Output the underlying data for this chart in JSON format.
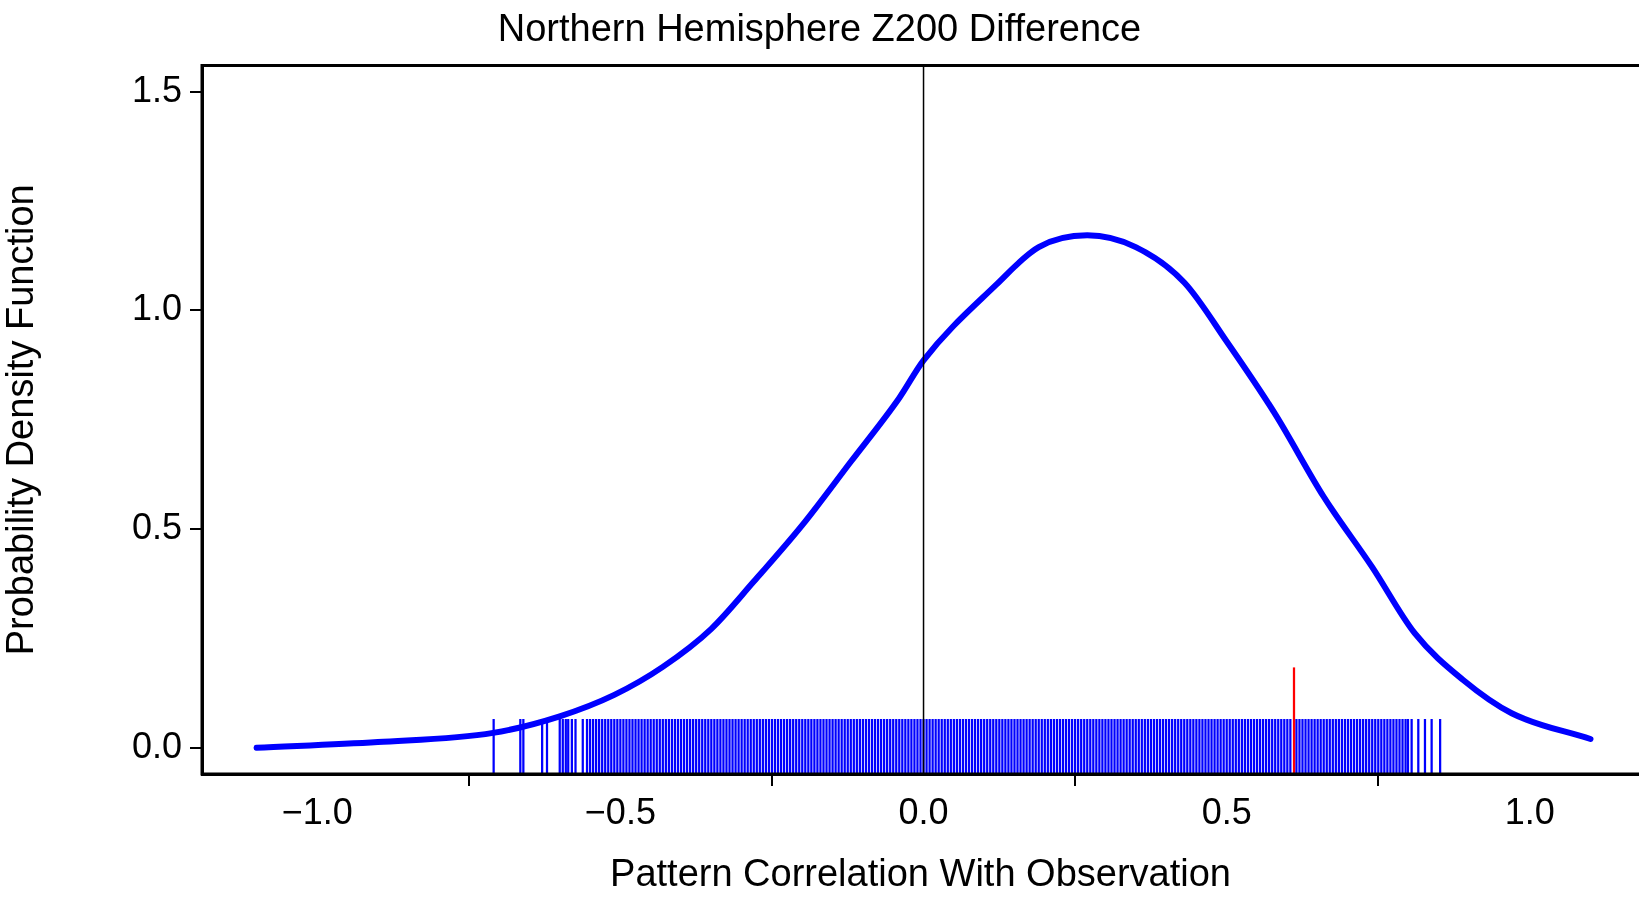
{
  "chart_data": {
    "type": "line",
    "title": "Northern Hemisphere Z200 Difference",
    "xlabel": "Pattern Correlation With Observation",
    "ylabel": "Probability Density Function",
    "xlim": [
      -1.19,
      1.18
    ],
    "ylim": [
      -0.06,
      1.56
    ],
    "xticks": [
      {
        "value": -1,
        "label": "−1.0"
      },
      {
        "value": -0.5,
        "label": "−0.5"
      },
      {
        "value": 0,
        "label": "0.0"
      },
      {
        "value": 0.5,
        "label": "0.5"
      },
      {
        "value": 1,
        "label": "1.0"
      }
    ],
    "yticks": [
      {
        "value": 0,
        "label": "0.0"
      },
      {
        "value": 0.5,
        "label": "0.5"
      },
      {
        "value": 1,
        "label": "1.0"
      },
      {
        "value": 1.5,
        "label": "1.5"
      }
    ],
    "grid": false,
    "legend": false,
    "marker": "none",
    "line_style": "solid",
    "ref_lines": [
      {
        "axis": "x",
        "value": 0,
        "color": "#000000"
      }
    ],
    "series": [
      {
        "color": "#0000ff",
        "x": [
          -1.1,
          -0.9,
          -0.71,
          -0.6,
          -0.51,
          -0.43,
          -0.35,
          -0.28,
          -0.2,
          -0.12,
          -0.04,
          0,
          0.12,
          0.19,
          0.27,
          0.35,
          0.43,
          0.5,
          0.58,
          0.66,
          0.74,
          0.81,
          0.89,
          0.97,
          1.1
        ],
        "values": [
          0,
          0.013,
          0.034,
          0.072,
          0.121,
          0.185,
          0.272,
          0.38,
          0.509,
          0.654,
          0.8,
          0.886,
          1.059,
          1.145,
          1.172,
          1.145,
          1.064,
          0.929,
          0.763,
          0.574,
          0.413,
          0.262,
          0.155,
          0.079,
          0.02
        ]
      },
      {
        "type": "bar",
        "color": "#0000ff",
        "x": [
          -0.709,
          -0.665,
          -0.66,
          -0.629,
          -0.621,
          -0.6,
          -0.595,
          -0.59,
          -0.586,
          -0.58,
          -0.574,
          -0.562,
          -0.555,
          -0.55,
          -0.545,
          -0.54,
          -0.535,
          -0.53,
          -0.525,
          -0.52,
          -0.515,
          -0.51,
          -0.505,
          -0.5,
          -0.495,
          -0.49,
          -0.485,
          -0.48,
          -0.475,
          -0.47,
          -0.465,
          -0.46,
          -0.455,
          -0.45,
          -0.445,
          -0.44,
          -0.435,
          -0.43,
          -0.425,
          -0.42,
          -0.415,
          -0.41,
          -0.405,
          -0.4,
          -0.395,
          -0.39,
          -0.385,
          -0.38,
          -0.375,
          -0.37,
          -0.365,
          -0.36,
          -0.355,
          -0.35,
          -0.345,
          -0.34,
          -0.335,
          -0.33,
          -0.325,
          -0.32,
          -0.315,
          -0.31,
          -0.305,
          -0.3,
          -0.295,
          -0.29,
          -0.285,
          -0.28,
          -0.275,
          -0.27,
          -0.265,
          -0.26,
          -0.255,
          -0.25,
          -0.245,
          -0.24,
          -0.235,
          -0.23,
          -0.225,
          -0.22,
          -0.215,
          -0.21,
          -0.205,
          -0.2,
          -0.195,
          -0.19,
          -0.185,
          -0.18,
          -0.175,
          -0.17,
          -0.165,
          -0.16,
          -0.155,
          -0.15,
          -0.145,
          -0.14,
          -0.135,
          -0.13,
          -0.125,
          -0.12,
          -0.115,
          -0.11,
          -0.105,
          -0.1,
          -0.095,
          -0.09,
          -0.085,
          -0.08,
          -0.075,
          -0.07,
          -0.065,
          -0.06,
          -0.055,
          -0.05,
          -0.045,
          -0.04,
          -0.035,
          -0.03,
          -0.025,
          -0.02,
          -0.015,
          -0.01,
          -0.005,
          0,
          0.005,
          0.01,
          0.015,
          0.02,
          0.025,
          0.03,
          0.035,
          0.04,
          0.045,
          0.05,
          0.055,
          0.06,
          0.065,
          0.07,
          0.075,
          0.08,
          0.085,
          0.09,
          0.095,
          0.1,
          0.105,
          0.11,
          0.115,
          0.12,
          0.125,
          0.13,
          0.135,
          0.14,
          0.145,
          0.15,
          0.155,
          0.16,
          0.165,
          0.17,
          0.175,
          0.18,
          0.185,
          0.19,
          0.195,
          0.2,
          0.205,
          0.21,
          0.215,
          0.22,
          0.225,
          0.23,
          0.235,
          0.24,
          0.245,
          0.25,
          0.255,
          0.26,
          0.265,
          0.27,
          0.275,
          0.28,
          0.285,
          0.29,
          0.295,
          0.3,
          0.305,
          0.31,
          0.315,
          0.32,
          0.325,
          0.33,
          0.335,
          0.34,
          0.345,
          0.35,
          0.355,
          0.36,
          0.365,
          0.37,
          0.375,
          0.38,
          0.385,
          0.39,
          0.395,
          0.4,
          0.405,
          0.41,
          0.415,
          0.42,
          0.425,
          0.43,
          0.435,
          0.44,
          0.445,
          0.45,
          0.455,
          0.46,
          0.465,
          0.47,
          0.475,
          0.48,
          0.485,
          0.49,
          0.495,
          0.5,
          0.505,
          0.51,
          0.515,
          0.52,
          0.525,
          0.53,
          0.535,
          0.54,
          0.545,
          0.55,
          0.555,
          0.56,
          0.565,
          0.57,
          0.575,
          0.58,
          0.585,
          0.59,
          0.595,
          0.6,
          0.605,
          0.615,
          0.62,
          0.625,
          0.63,
          0.635,
          0.64,
          0.645,
          0.65,
          0.655,
          0.66,
          0.665,
          0.67,
          0.675,
          0.68,
          0.685,
          0.69,
          0.695,
          0.7,
          0.705,
          0.71,
          0.715,
          0.72,
          0.725,
          0.73,
          0.735,
          0.74,
          0.745,
          0.75,
          0.755,
          0.76,
          0.765,
          0.77,
          0.775,
          0.78,
          0.785,
          0.79,
          0.795,
          0.799,
          0.805,
          0.816,
          0.827,
          0.838,
          0.852
        ],
        "values": [
          0.125,
          0.125,
          0.125,
          0.125,
          0.125,
          0.125,
          0.125,
          0.125,
          0.125,
          0.125,
          0.125,
          0.125,
          0.125,
          0.125,
          0.125,
          0.125,
          0.125,
          0.125,
          0.125,
          0.125,
          0.125,
          0.125,
          0.125,
          0.125,
          0.125,
          0.125,
          0.125,
          0.125,
          0.125,
          0.125,
          0.125,
          0.125,
          0.125,
          0.125,
          0.125,
          0.125,
          0.125,
          0.125,
          0.125,
          0.125,
          0.125,
          0.125,
          0.125,
          0.125,
          0.125,
          0.125,
          0.125,
          0.125,
          0.125,
          0.125,
          0.125,
          0.125,
          0.125,
          0.125,
          0.125,
          0.125,
          0.125,
          0.125,
          0.125,
          0.125,
          0.125,
          0.125,
          0.125,
          0.125,
          0.125,
          0.125,
          0.125,
          0.125,
          0.125,
          0.125,
          0.125,
          0.125,
          0.125,
          0.125,
          0.125,
          0.125,
          0.125,
          0.125,
          0.125,
          0.125,
          0.125,
          0.125,
          0.125,
          0.125,
          0.125,
          0.125,
          0.125,
          0.125,
          0.125,
          0.125,
          0.125,
          0.125,
          0.125,
          0.125,
          0.125,
          0.125,
          0.125,
          0.125,
          0.125,
          0.125,
          0.125,
          0.125,
          0.125,
          0.125,
          0.125,
          0.125,
          0.125,
          0.125,
          0.125,
          0.125,
          0.125,
          0.125,
          0.125,
          0.125,
          0.125,
          0.125,
          0.125,
          0.125,
          0.125,
          0.125,
          0.125,
          0.125,
          0.125,
          0.125,
          0.125,
          0.125,
          0.125,
          0.125,
          0.125,
          0.125,
          0.125,
          0.125,
          0.125,
          0.125,
          0.125,
          0.125,
          0.125,
          0.125,
          0.125,
          0.125,
          0.125,
          0.125,
          0.125,
          0.125,
          0.125,
          0.125,
          0.125,
          0.125,
          0.125,
          0.125,
          0.125,
          0.125,
          0.125,
          0.125,
          0.125,
          0.125,
          0.125,
          0.125,
          0.125,
          0.125,
          0.125,
          0.125,
          0.125,
          0.125,
          0.125,
          0.125,
          0.125,
          0.125,
          0.125,
          0.125,
          0.125,
          0.125,
          0.125,
          0.125,
          0.125,
          0.125,
          0.125,
          0.125,
          0.125,
          0.125,
          0.125,
          0.125,
          0.125,
          0.125,
          0.125,
          0.125,
          0.125,
          0.125,
          0.125,
          0.125,
          0.125,
          0.125,
          0.125,
          0.125,
          0.125,
          0.125,
          0.125,
          0.125,
          0.125,
          0.125,
          0.125,
          0.125,
          0.125,
          0.125,
          0.125,
          0.125,
          0.125,
          0.125,
          0.125,
          0.125,
          0.125,
          0.125,
          0.125,
          0.125,
          0.125,
          0.125,
          0.125,
          0.125,
          0.125,
          0.125,
          0.125,
          0.125,
          0.125,
          0.125,
          0.125,
          0.125,
          0.125,
          0.125,
          0.125,
          0.125,
          0.125,
          0.125,
          0.125,
          0.125,
          0.125,
          0.125,
          0.125,
          0.125,
          0.125,
          0.125,
          0.125,
          0.125,
          0.125,
          0.125,
          0.125,
          0.125,
          0.125,
          0.125,
          0.125,
          0.125,
          0.125,
          0.125,
          0.125,
          0.125,
          0.125,
          0.125,
          0.125,
          0.125,
          0.125,
          0.125,
          0.125,
          0.125,
          0.125,
          0.125,
          0.125,
          0.125,
          0.125,
          0.125,
          0.125,
          0.125,
          0.125,
          0.125,
          0.125,
          0.125,
          0.125,
          0.125,
          0.125,
          0.125,
          0.125,
          0.125,
          0.125,
          0.125,
          0.125,
          0.125,
          0.125,
          0.125,
          0.125,
          0.125
        ],
        "base": [
          -0.06,
          -0.06,
          -0.06,
          -0.06,
          -0.06,
          -0.06,
          -0.06,
          -0.06,
          -0.06,
          -0.06,
          -0.06,
          -0.06,
          -0.06,
          -0.06,
          -0.06,
          -0.06,
          -0.06,
          -0.06,
          -0.06,
          -0.06,
          -0.06,
          -0.06,
          -0.06,
          -0.06,
          -0.06,
          -0.06,
          -0.06,
          -0.06,
          -0.06,
          -0.06,
          -0.06,
          -0.06,
          -0.06,
          -0.06,
          -0.06,
          -0.06,
          -0.06,
          -0.06,
          -0.06,
          -0.06,
          -0.06,
          -0.06,
          -0.06,
          -0.06,
          -0.06,
          -0.06,
          -0.06,
          -0.06,
          -0.06,
          -0.06,
          -0.06,
          -0.06,
          -0.06,
          -0.06,
          -0.06,
          -0.06,
          -0.06,
          -0.06,
          -0.06,
          -0.06,
          -0.06,
          -0.06,
          -0.06,
          -0.06,
          -0.06,
          -0.06,
          -0.06,
          -0.06,
          -0.06,
          -0.06,
          -0.06,
          -0.06,
          -0.06,
          -0.06,
          -0.06,
          -0.06,
          -0.06,
          -0.06,
          -0.06,
          -0.06,
          -0.06,
          -0.06,
          -0.06,
          -0.06,
          -0.06,
          -0.06,
          -0.06,
          -0.06,
          -0.06,
          -0.06,
          -0.06,
          -0.06,
          -0.06,
          -0.06,
          -0.06,
          -0.06,
          -0.06,
          -0.06,
          -0.06,
          -0.06,
          -0.06,
          -0.06,
          -0.06,
          -0.06,
          -0.06,
          -0.06,
          -0.06,
          -0.06,
          -0.06,
          -0.06,
          -0.06,
          -0.06,
          -0.06,
          -0.06,
          -0.06,
          -0.06,
          -0.06,
          -0.06,
          -0.06,
          -0.06,
          -0.06,
          -0.06,
          -0.06,
          -0.06,
          -0.06,
          -0.06,
          -0.06,
          -0.06,
          -0.06,
          -0.06,
          -0.06,
          -0.06,
          -0.06,
          -0.06,
          -0.06,
          -0.06,
          -0.06,
          -0.06,
          -0.06,
          -0.06,
          -0.06,
          -0.06,
          -0.06,
          -0.06,
          -0.06,
          -0.06,
          -0.06,
          -0.06,
          -0.06,
          -0.06,
          -0.06,
          -0.06,
          -0.06,
          -0.06,
          -0.06,
          -0.06,
          -0.06,
          -0.06,
          -0.06,
          -0.06,
          -0.06,
          -0.06,
          -0.06,
          -0.06,
          -0.06,
          -0.06,
          -0.06,
          -0.06,
          -0.06,
          -0.06,
          -0.06,
          -0.06,
          -0.06,
          -0.06,
          -0.06,
          -0.06,
          -0.06,
          -0.06,
          -0.06,
          -0.06,
          -0.06,
          -0.06,
          -0.06,
          -0.06,
          -0.06,
          -0.06,
          -0.06,
          -0.06,
          -0.06,
          -0.06,
          -0.06,
          -0.06,
          -0.06,
          -0.06,
          -0.06,
          -0.06,
          -0.06,
          -0.06,
          -0.06,
          -0.06,
          -0.06,
          -0.06,
          -0.06,
          -0.06,
          -0.06,
          -0.06,
          -0.06,
          -0.06,
          -0.06,
          -0.06,
          -0.06,
          -0.06,
          -0.06,
          -0.06,
          -0.06,
          -0.06,
          -0.06,
          -0.06,
          -0.06,
          -0.06,
          -0.06,
          -0.06,
          -0.06,
          -0.06,
          -0.06,
          -0.06,
          -0.06,
          -0.06,
          -0.06,
          -0.06,
          -0.06,
          -0.06,
          -0.06,
          -0.06,
          -0.06,
          -0.06,
          -0.06,
          -0.06,
          -0.06,
          -0.06,
          -0.06,
          -0.06,
          -0.06,
          -0.06,
          -0.06,
          -0.06,
          -0.06,
          -0.06,
          -0.06,
          -0.06,
          -0.06,
          -0.06,
          -0.06,
          -0.06,
          -0.06,
          -0.06,
          -0.06,
          -0.06,
          -0.06,
          -0.06,
          -0.06,
          -0.06,
          -0.06,
          -0.06,
          -0.06,
          -0.06,
          -0.06,
          -0.06,
          -0.06,
          -0.06,
          -0.06,
          -0.06,
          -0.06,
          -0.06,
          -0.06,
          -0.06,
          -0.06,
          -0.06,
          -0.06,
          -0.06,
          -0.06,
          -0.06,
          -0.06,
          -0.06,
          -0.06,
          -0.06,
          -0.06,
          -0.06
        ]
      },
      {
        "type": "bar",
        "color": "#ff0000",
        "x": [
          0.611
        ],
        "values": [
          0.243
        ],
        "base": [
          -0.06
        ]
      }
    ]
  }
}
